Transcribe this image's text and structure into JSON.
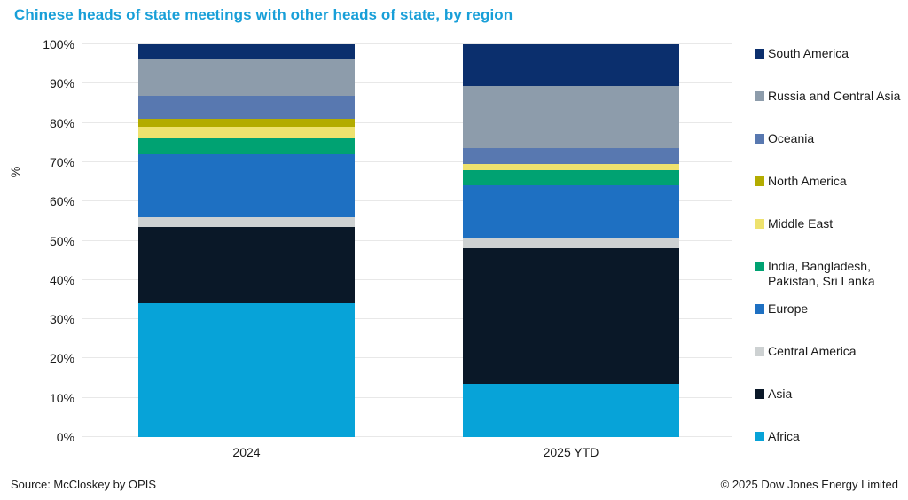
{
  "title": "Chinese heads of state meetings with other heads of state, by region",
  "colors": {
    "title": "#189FD8",
    "axis_text": "#1a1a1a",
    "gridline": "#e8e8e8"
  },
  "footer": {
    "source": "Source: McCloskey by OPIS",
    "copyright": "© 2025 Dow Jones Energy Limited"
  },
  "chart_data": {
    "type": "bar",
    "stacked": true,
    "title": "Chinese heads of state meetings with other heads of state, by region",
    "xlabel": "",
    "ylabel": "%",
    "ylim": [
      0,
      100
    ],
    "ytick_step": 10,
    "ytick_suffix": "%",
    "grid": true,
    "legend_position": "right",
    "categories": [
      "2024",
      "2025 YTD"
    ],
    "series": [
      {
        "name": "South America",
        "color": "#0b2f6d",
        "values": [
          3.5,
          10.5
        ]
      },
      {
        "name": "Russia and Central Asia",
        "color": "#8d9cab",
        "values": [
          9.5,
          16
        ]
      },
      {
        "name": "Oceania",
        "color": "#5878b0",
        "values": [
          6,
          4
        ]
      },
      {
        "name": "North America",
        "color": "#b3ac00",
        "values": [
          2,
          0
        ]
      },
      {
        "name": "Middle East",
        "color": "#eee26e",
        "values": [
          3,
          1.5
        ]
      },
      {
        "name": "India, Bangladesh, Pakistan, Sri Lanka",
        "color": "#00a272",
        "values": [
          4,
          4
        ]
      },
      {
        "name": "Europe",
        "color": "#1e70c2",
        "values": [
          16,
          13.5
        ]
      },
      {
        "name": "Central America",
        "color": "#cdd1d2",
        "values": [
          2.5,
          2.5
        ]
      },
      {
        "name": "Asia",
        "color": "#0a1828",
        "values": [
          19.5,
          34.5
        ]
      },
      {
        "name": "Africa",
        "color": "#07a3d8",
        "values": [
          34,
          13.5
        ]
      }
    ]
  }
}
